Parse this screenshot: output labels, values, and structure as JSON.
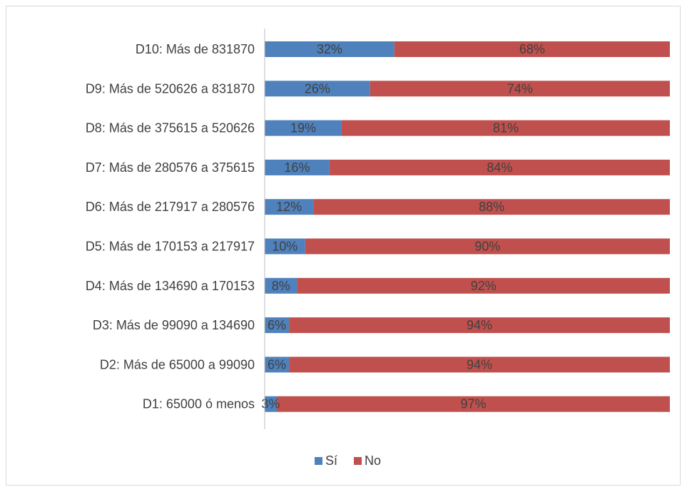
{
  "chart_data": {
    "type": "bar",
    "orientation": "horizontal",
    "stacked": "100%",
    "categories": [
      "D10: Más de 831870",
      "D9: Más de 520626 a 831870",
      "D8: Más de 375615 a 520626",
      "D7: Más de 280576 a 375615",
      "D6: Más de 217917 a 280576",
      "D5: Más de 170153 a 217917",
      "D4: Más de 134690 a 170153",
      "D3: Más de 99090 a 134690",
      "D2: Más de 65000 a 99090",
      "D1: 65000 ó menos"
    ],
    "series": [
      {
        "name": "Sí",
        "color": "#4f81bd",
        "values": [
          32,
          26,
          19,
          16,
          12,
          10,
          8,
          6,
          6,
          3
        ],
        "labels": [
          "32%",
          "26%",
          "19%",
          "16%",
          "12%",
          "10%",
          "8%",
          "6%",
          "6%",
          "3%"
        ]
      },
      {
        "name": "No",
        "color": "#c0504d",
        "values": [
          68,
          74,
          81,
          84,
          88,
          90,
          92,
          94,
          94,
          97
        ],
        "labels": [
          "68%",
          "74%",
          "81%",
          "84%",
          "88%",
          "90%",
          "92%",
          "94%",
          "94%",
          "97%"
        ]
      }
    ],
    "xlim": [
      0,
      100
    ],
    "grid": false,
    "legend_position": "bottom"
  }
}
